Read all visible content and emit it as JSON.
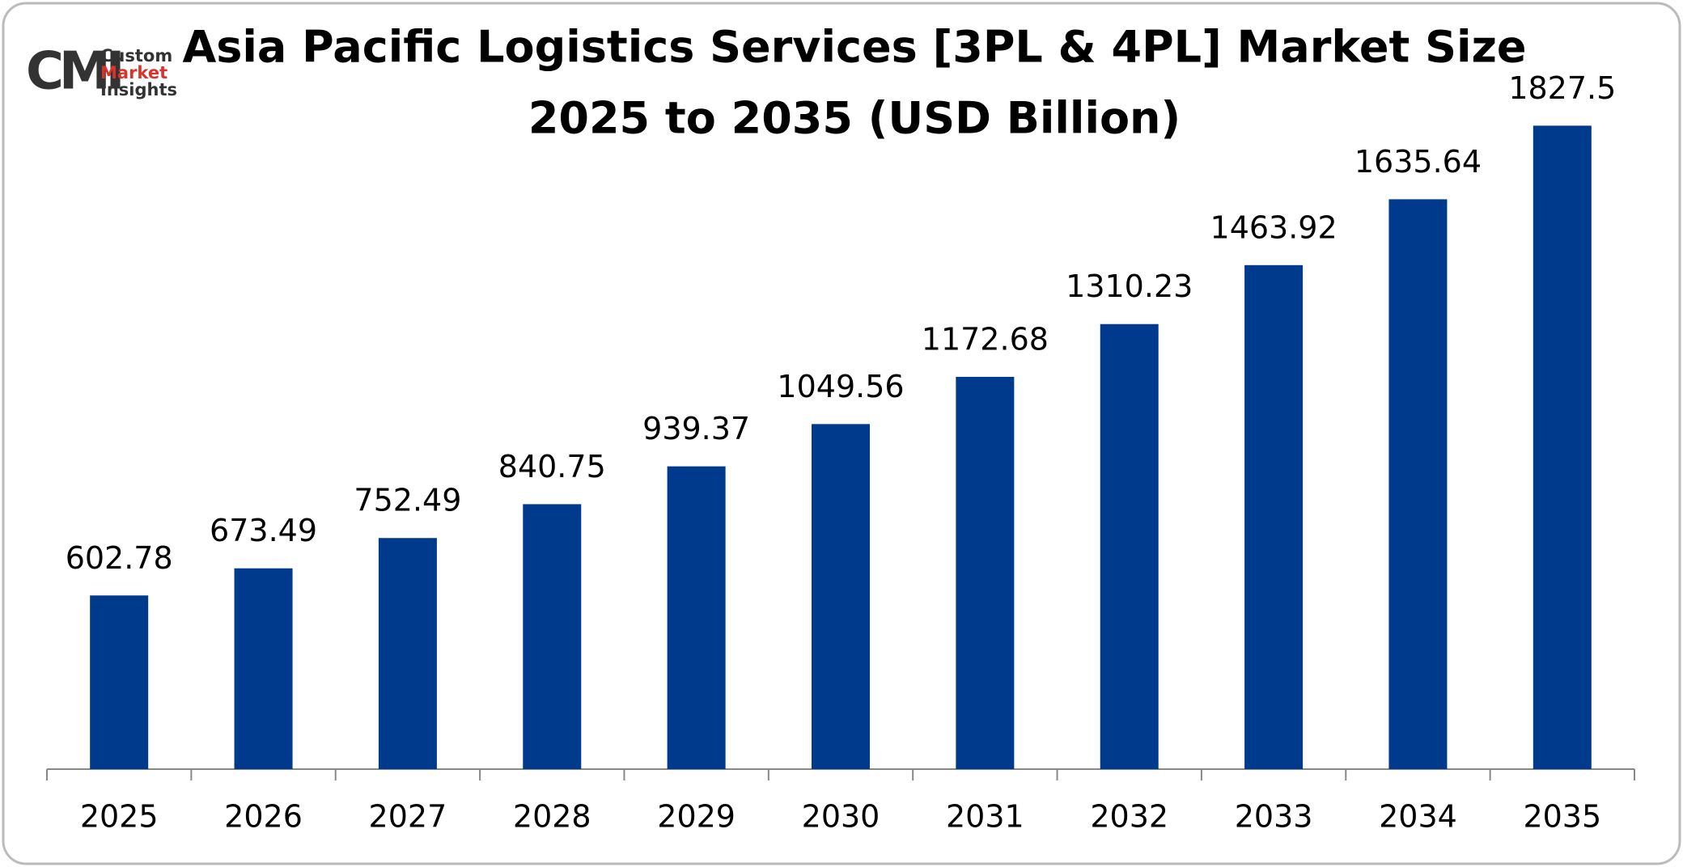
{
  "logo": {
    "mark": "CMI",
    "lines": [
      "Custom",
      "Market",
      "Insights"
    ]
  },
  "chart_data": {
    "type": "bar",
    "title": [
      "Asia Pacific Logistics Services [3PL & 4PL] Market Size",
      "2025 to 2035 (USD Billion)"
    ],
    "categories": [
      "2025",
      "2026",
      "2027",
      "2028",
      "2029",
      "2030",
      "2031",
      "2032",
      "2033",
      "2034",
      "2035"
    ],
    "values": [
      602.78,
      673.49,
      752.49,
      840.75,
      939.37,
      1049.56,
      1172.68,
      1310.23,
      1463.92,
      1635.64,
      1827.5
    ],
    "color": "#003a8c",
    "ylim": [
      150,
      1900
    ]
  }
}
